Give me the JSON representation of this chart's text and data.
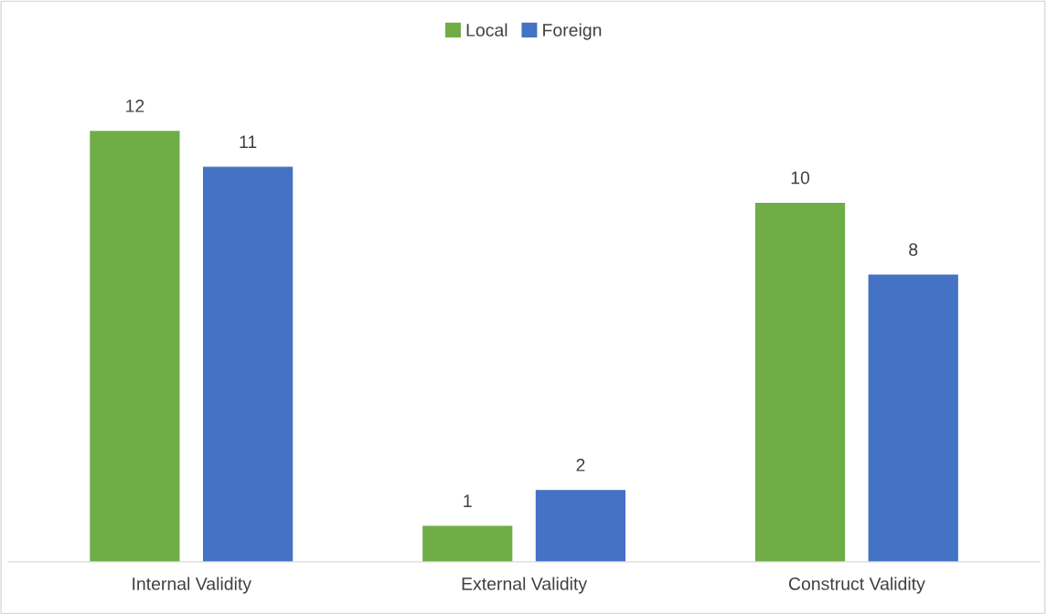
{
  "chart_data": {
    "type": "bar",
    "categories": [
      "Internal Validity",
      "External Validity",
      "Construct Validity"
    ],
    "series": [
      {
        "name": "Local",
        "color": "#70ad47",
        "values": [
          12,
          1,
          10
        ]
      },
      {
        "name": "Foreign",
        "color": "#4472c4",
        "values": [
          11,
          2,
          8
        ]
      }
    ],
    "data_labels": true,
    "legend": "top",
    "grid": false
  }
}
